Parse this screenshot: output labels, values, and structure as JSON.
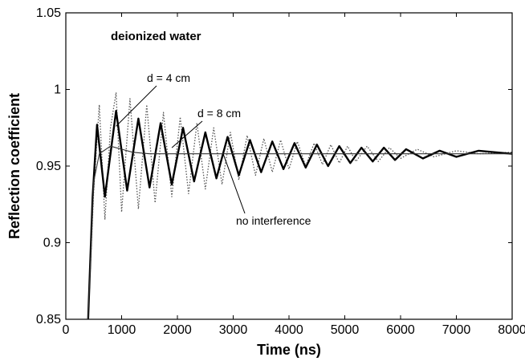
{
  "chart_data": {
    "type": "line",
    "title": "",
    "xlabel": "Time (ns)",
    "ylabel": "Reflection coefficient",
    "xlim": [
      0,
      8000
    ],
    "ylim": [
      0.85,
      1.05
    ],
    "x_ticks": [
      "0",
      "1000",
      "2000",
      "3000",
      "4000",
      "5000",
      "6000",
      "7000",
      "8000"
    ],
    "y_ticks": [
      "0.85",
      "0.9",
      "0.95",
      "1",
      "1.05"
    ],
    "grid": false,
    "series": [
      {
        "name": "d = 4 cm",
        "style": "dotted",
        "color": "#555555",
        "x": [
          400,
          500,
          600,
          700,
          800,
          900,
          1000,
          1150,
          1300,
          1450,
          1600,
          1750,
          1900,
          2050,
          2200,
          2350,
          2500,
          2650,
          2800,
          2950,
          3100,
          3250,
          3400,
          3550,
          3700,
          3850,
          4000,
          4150,
          4300,
          4450,
          4600,
          4750,
          4900,
          5050,
          5200,
          5400,
          5600,
          5800,
          6000,
          6300,
          6600,
          7000,
          7400,
          8000
        ],
        "values": [
          0.85,
          0.935,
          0.99,
          0.915,
          0.975,
          0.998,
          0.92,
          0.994,
          0.922,
          0.99,
          0.926,
          0.985,
          0.93,
          0.982,
          0.932,
          0.978,
          0.935,
          0.975,
          0.938,
          0.972,
          0.941,
          0.97,
          0.944,
          0.968,
          0.946,
          0.967,
          0.948,
          0.966,
          0.95,
          0.965,
          0.951,
          0.964,
          0.952,
          0.963,
          0.953,
          0.963,
          0.953,
          0.962,
          0.955,
          0.961,
          0.956,
          0.96,
          0.958,
          0.959
        ]
      },
      {
        "name": "d = 8 cm",
        "style": "solid",
        "color": "#000000",
        "x": [
          400,
          480,
          560,
          700,
          900,
          1100,
          1300,
          1500,
          1700,
          1900,
          2100,
          2300,
          2500,
          2700,
          2900,
          3100,
          3300,
          3500,
          3700,
          3900,
          4100,
          4300,
          4500,
          4700,
          4900,
          5100,
          5300,
          5500,
          5700,
          5900,
          6100,
          6400,
          6700,
          7000,
          7400,
          8000
        ],
        "values": [
          0.85,
          0.93,
          0.977,
          0.93,
          0.986,
          0.934,
          0.981,
          0.936,
          0.978,
          0.938,
          0.975,
          0.94,
          0.972,
          0.942,
          0.969,
          0.944,
          0.967,
          0.946,
          0.966,
          0.948,
          0.965,
          0.949,
          0.964,
          0.95,
          0.963,
          0.952,
          0.962,
          0.953,
          0.962,
          0.954,
          0.961,
          0.955,
          0.96,
          0.956,
          0.96,
          0.958
        ]
      },
      {
        "name": "no interference",
        "style": "thin",
        "color": "#333333",
        "x": [
          400,
          500,
          600,
          800,
          1000,
          1200,
          1500,
          2000,
          3000,
          4000,
          5000,
          6000,
          7000,
          8000
        ],
        "values": [
          0.85,
          0.94,
          0.958,
          0.963,
          0.961,
          0.959,
          0.958,
          0.958,
          0.958,
          0.958,
          0.958,
          0.958,
          0.958,
          0.958
        ]
      }
    ],
    "annotations": [
      {
        "text": "deionized water"
      },
      {
        "text": "d = 4 cm",
        "points_to": [
          900,
          0.976
        ]
      },
      {
        "text": "d = 8 cm",
        "points_to": [
          1900,
          0.962
        ]
      },
      {
        "text": "no interference",
        "points_to": [
          2400,
          0.958
        ]
      }
    ]
  }
}
